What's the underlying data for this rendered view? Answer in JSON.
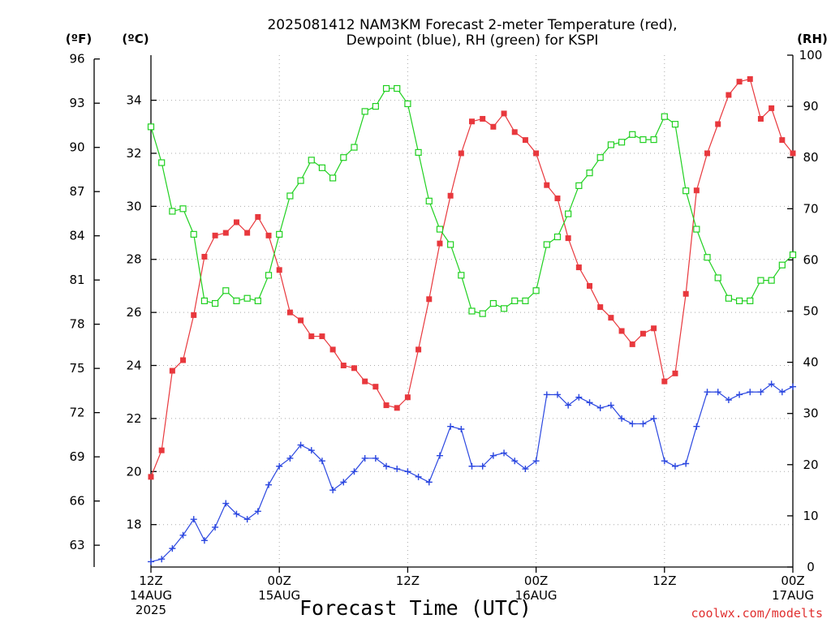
{
  "chart_data": {
    "type": "line",
    "title_line1": "2025081412 NAM3KM Forecast 2-meter Temperature (red),",
    "title_line2": "Dewpoint (blue), RH (green) for KSPI",
    "xlabel": "Forecast Time (UTC)",
    "credit": "coolwx.com/modelts",
    "unit_f": "(ºF)",
    "unit_c": "(ºC)",
    "unit_rh": "(RH)",
    "x_range_hours": [
      0,
      60
    ],
    "x_ticks": [
      {
        "hour": 0,
        "label": "12Z",
        "date": "14AUG",
        "year": "2025"
      },
      {
        "hour": 12,
        "label": "00Z",
        "date": "15AUG",
        "year": ""
      },
      {
        "hour": 24,
        "label": "12Z",
        "date": "",
        "year": ""
      },
      {
        "hour": 36,
        "label": "00Z",
        "date": "16AUG",
        "year": ""
      },
      {
        "hour": 48,
        "label": "12Z",
        "date": "",
        "year": ""
      },
      {
        "hour": 60,
        "label": "00Z",
        "date": "17AUG",
        "year": ""
      }
    ],
    "y_celsius": {
      "range": [
        16.4,
        35.7
      ],
      "ticks": [
        "18",
        "20",
        "22",
        "24",
        "26",
        "28",
        "30",
        "32",
        "34"
      ]
    },
    "y_fahrenheit": {
      "ticks": [
        "63",
        "66",
        "69",
        "72",
        "75",
        "78",
        "81",
        "84",
        "87",
        "90",
        "93",
        "96"
      ]
    },
    "y_rh": {
      "range": [
        0,
        100
      ],
      "ticks": [
        "0",
        "10",
        "20",
        "30",
        "40",
        "50",
        "60",
        "70",
        "80",
        "90",
        "100"
      ]
    },
    "grid": true,
    "series": [
      {
        "name": "2-meter Temperature",
        "axis": "celsius",
        "color": "#e8383d",
        "marker": "filled-square",
        "hour_step": 1,
        "values": [
          19.8,
          20.8,
          23.8,
          24.2,
          25.9,
          28.1,
          28.9,
          29.0,
          29.4,
          29.0,
          29.6,
          28.9,
          27.6,
          26.0,
          25.7,
          25.1,
          25.1,
          24.6,
          24.0,
          23.9,
          23.4,
          23.2,
          22.5,
          22.4,
          22.8,
          24.6,
          26.5,
          28.6,
          30.4,
          32.0,
          33.2,
          33.3,
          33.0,
          33.5,
          32.8,
          32.5,
          32.0,
          30.8,
          30.3,
          28.8,
          27.7,
          27.0,
          26.2,
          25.8,
          25.3,
          24.8,
          25.2,
          25.4,
          23.4,
          23.7,
          26.7,
          30.6,
          32.0,
          33.1,
          34.2,
          34.7,
          34.8,
          33.3,
          33.7,
          32.5,
          32.0
        ]
      },
      {
        "name": "Dewpoint",
        "axis": "celsius",
        "color": "#2b47e0",
        "marker": "plus",
        "hour_step": 1,
        "values": [
          16.6,
          16.7,
          17.1,
          17.6,
          18.2,
          17.4,
          17.9,
          18.8,
          18.4,
          18.2,
          18.5,
          19.5,
          20.2,
          20.5,
          21.0,
          20.8,
          20.4,
          19.3,
          19.6,
          20.0,
          20.5,
          20.5,
          20.2,
          20.1,
          20.0,
          19.8,
          19.6,
          20.6,
          21.7,
          21.6,
          20.2,
          20.2,
          20.6,
          20.7,
          20.4,
          20.1,
          20.4,
          22.9,
          22.9,
          22.5,
          22.8,
          22.6,
          22.4,
          22.5,
          22.0,
          21.8,
          21.8,
          22.0,
          20.4,
          20.2,
          20.3,
          21.7,
          23.0,
          23.0,
          22.7,
          22.9,
          23.0,
          23.0,
          23.3,
          23.0,
          23.2
        ]
      },
      {
        "name": "RH",
        "axis": "rh",
        "color": "#20d020",
        "marker": "open-square",
        "hour_step": 1,
        "values": [
          86,
          79,
          69.5,
          70,
          65,
          52,
          51.5,
          54,
          52,
          52.5,
          52,
          57,
          65,
          72.5,
          75.5,
          79.5,
          78,
          76,
          80,
          82,
          89,
          90,
          93.5,
          93.5,
          90.5,
          81,
          71.5,
          66,
          63,
          57,
          50,
          49.5,
          51.5,
          50.5,
          52,
          52,
          54,
          63,
          64.5,
          69,
          74.5,
          77,
          80,
          82.5,
          83,
          84.5,
          83.5,
          83.5,
          88,
          86.5,
          73.5,
          66,
          60.5,
          56.5,
          52.5,
          52,
          52,
          56,
          56,
          59,
          61
        ]
      }
    ]
  }
}
